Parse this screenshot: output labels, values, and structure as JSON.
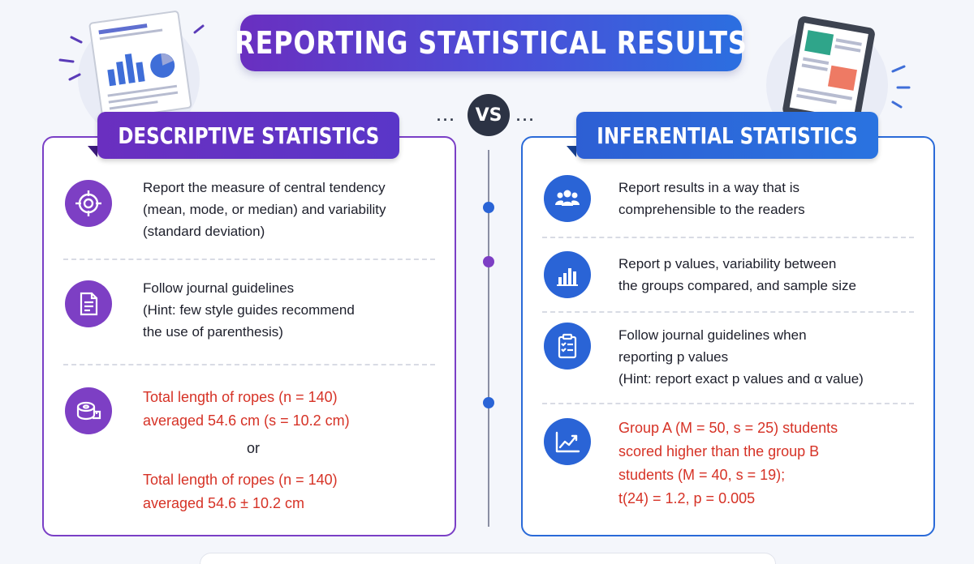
{
  "title": "REPORTING STATISTICAL RESULTS",
  "vs_label": "VS",
  "colors": {
    "purple": "#7d3fc4",
    "blue": "#2a64d6",
    "red_text": "#d63226",
    "dark": "#2c3344"
  },
  "descriptive": {
    "header": "DESCRIPTIVE STATISTICS",
    "items": [
      {
        "icon": "target-icon",
        "lines": [
          "Report the measure of central tendency",
          "(mean, mode, or median) and variability",
          "(standard deviation)"
        ]
      },
      {
        "icon": "document-icon",
        "lines": [
          "Follow journal guidelines",
          "(Hint: few style guides recommend",
          "the use of parenthesis)"
        ]
      },
      {
        "icon": "measuring-tape-icon",
        "example1": [
          "Total length of ropes (n = 140)",
          "averaged 54.6 cm (s = 10.2 cm)"
        ],
        "or": "or",
        "example2": [
          "Total length of ropes (n = 140)",
          "averaged 54.6 ± 10.2 cm"
        ]
      }
    ]
  },
  "inferential": {
    "header": "INFERENTIAL STATISTICS",
    "items": [
      {
        "icon": "people-icon",
        "lines": [
          "Report results in a way that is",
          "comprehensible to the readers"
        ]
      },
      {
        "icon": "bar-chart-icon",
        "lines": [
          "Report p values, variability between",
          "the groups compared, and sample size"
        ]
      },
      {
        "icon": "clipboard-checklist-icon",
        "lines": [
          "Follow journal guidelines when",
          "reporting p values",
          "(Hint: report exact p values and α value)"
        ]
      },
      {
        "icon": "trend-line-icon",
        "lines": [
          "Group A (M = 50, s = 25) students",
          "scored higher than the group B",
          "students (M = 40, s = 19);",
          "t(24) = 1.2, p = 0.005"
        ]
      }
    ]
  }
}
